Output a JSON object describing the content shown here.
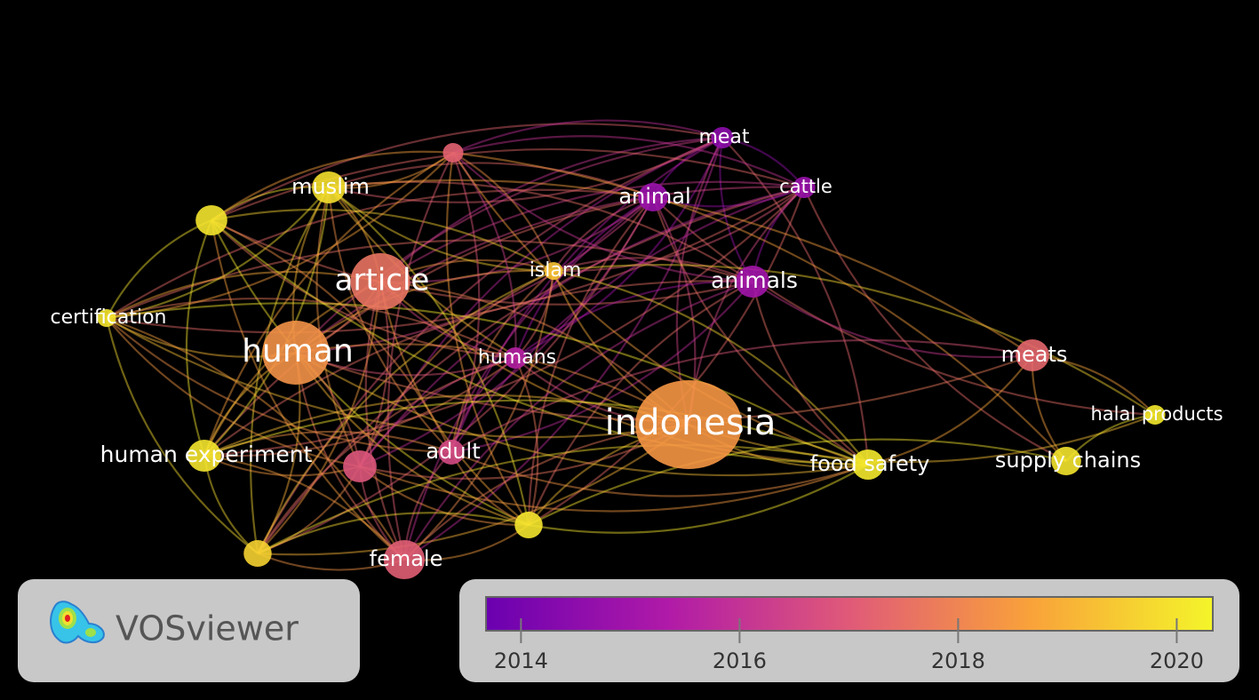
{
  "nodes": [
    {
      "label": "meat",
      "year": 2014.5
    },
    {
      "label": "animal",
      "year": 2014.8
    },
    {
      "label": "cattle",
      "year": 2014.8
    },
    {
      "label": "animals",
      "year": 2015.0
    },
    {
      "label": "islam",
      "year": 2019.3
    },
    {
      "label": "article",
      "year": 2017.6
    },
    {
      "label": "muslim",
      "year": 2019.9
    },
    {
      "year": 2020.0
    },
    {
      "label": "certification",
      "year": 2020.0
    },
    {
      "label": "human",
      "year": 2018.3
    },
    {
      "label": "humans",
      "year": 2015.5
    },
    {
      "year": 2017.2
    },
    {
      "label": "meats",
      "year": 2017.3
    },
    {
      "label": "indonesia",
      "year": 2018.4
    },
    {
      "label": "halal products",
      "year": 2020.1
    },
    {
      "label": "adult",
      "year": 2016.6
    },
    {
      "label": "human experiment",
      "year": 2020.0
    },
    {
      "year": 2016.9
    },
    {
      "label": "food safety",
      "year": 2020.1
    },
    {
      "label": "supply chains",
      "year": 2020.0
    },
    {
      "year": 2020.0
    },
    {
      "year": 2019.6
    },
    {
      "label": "female",
      "year": 2017.1
    }
  ],
  "brand": "VOSviewer",
  "colorbar": {
    "range": [
      2013.68,
      2020.33
    ],
    "ticks": [
      2014,
      2016,
      2018,
      2020
    ]
  }
}
